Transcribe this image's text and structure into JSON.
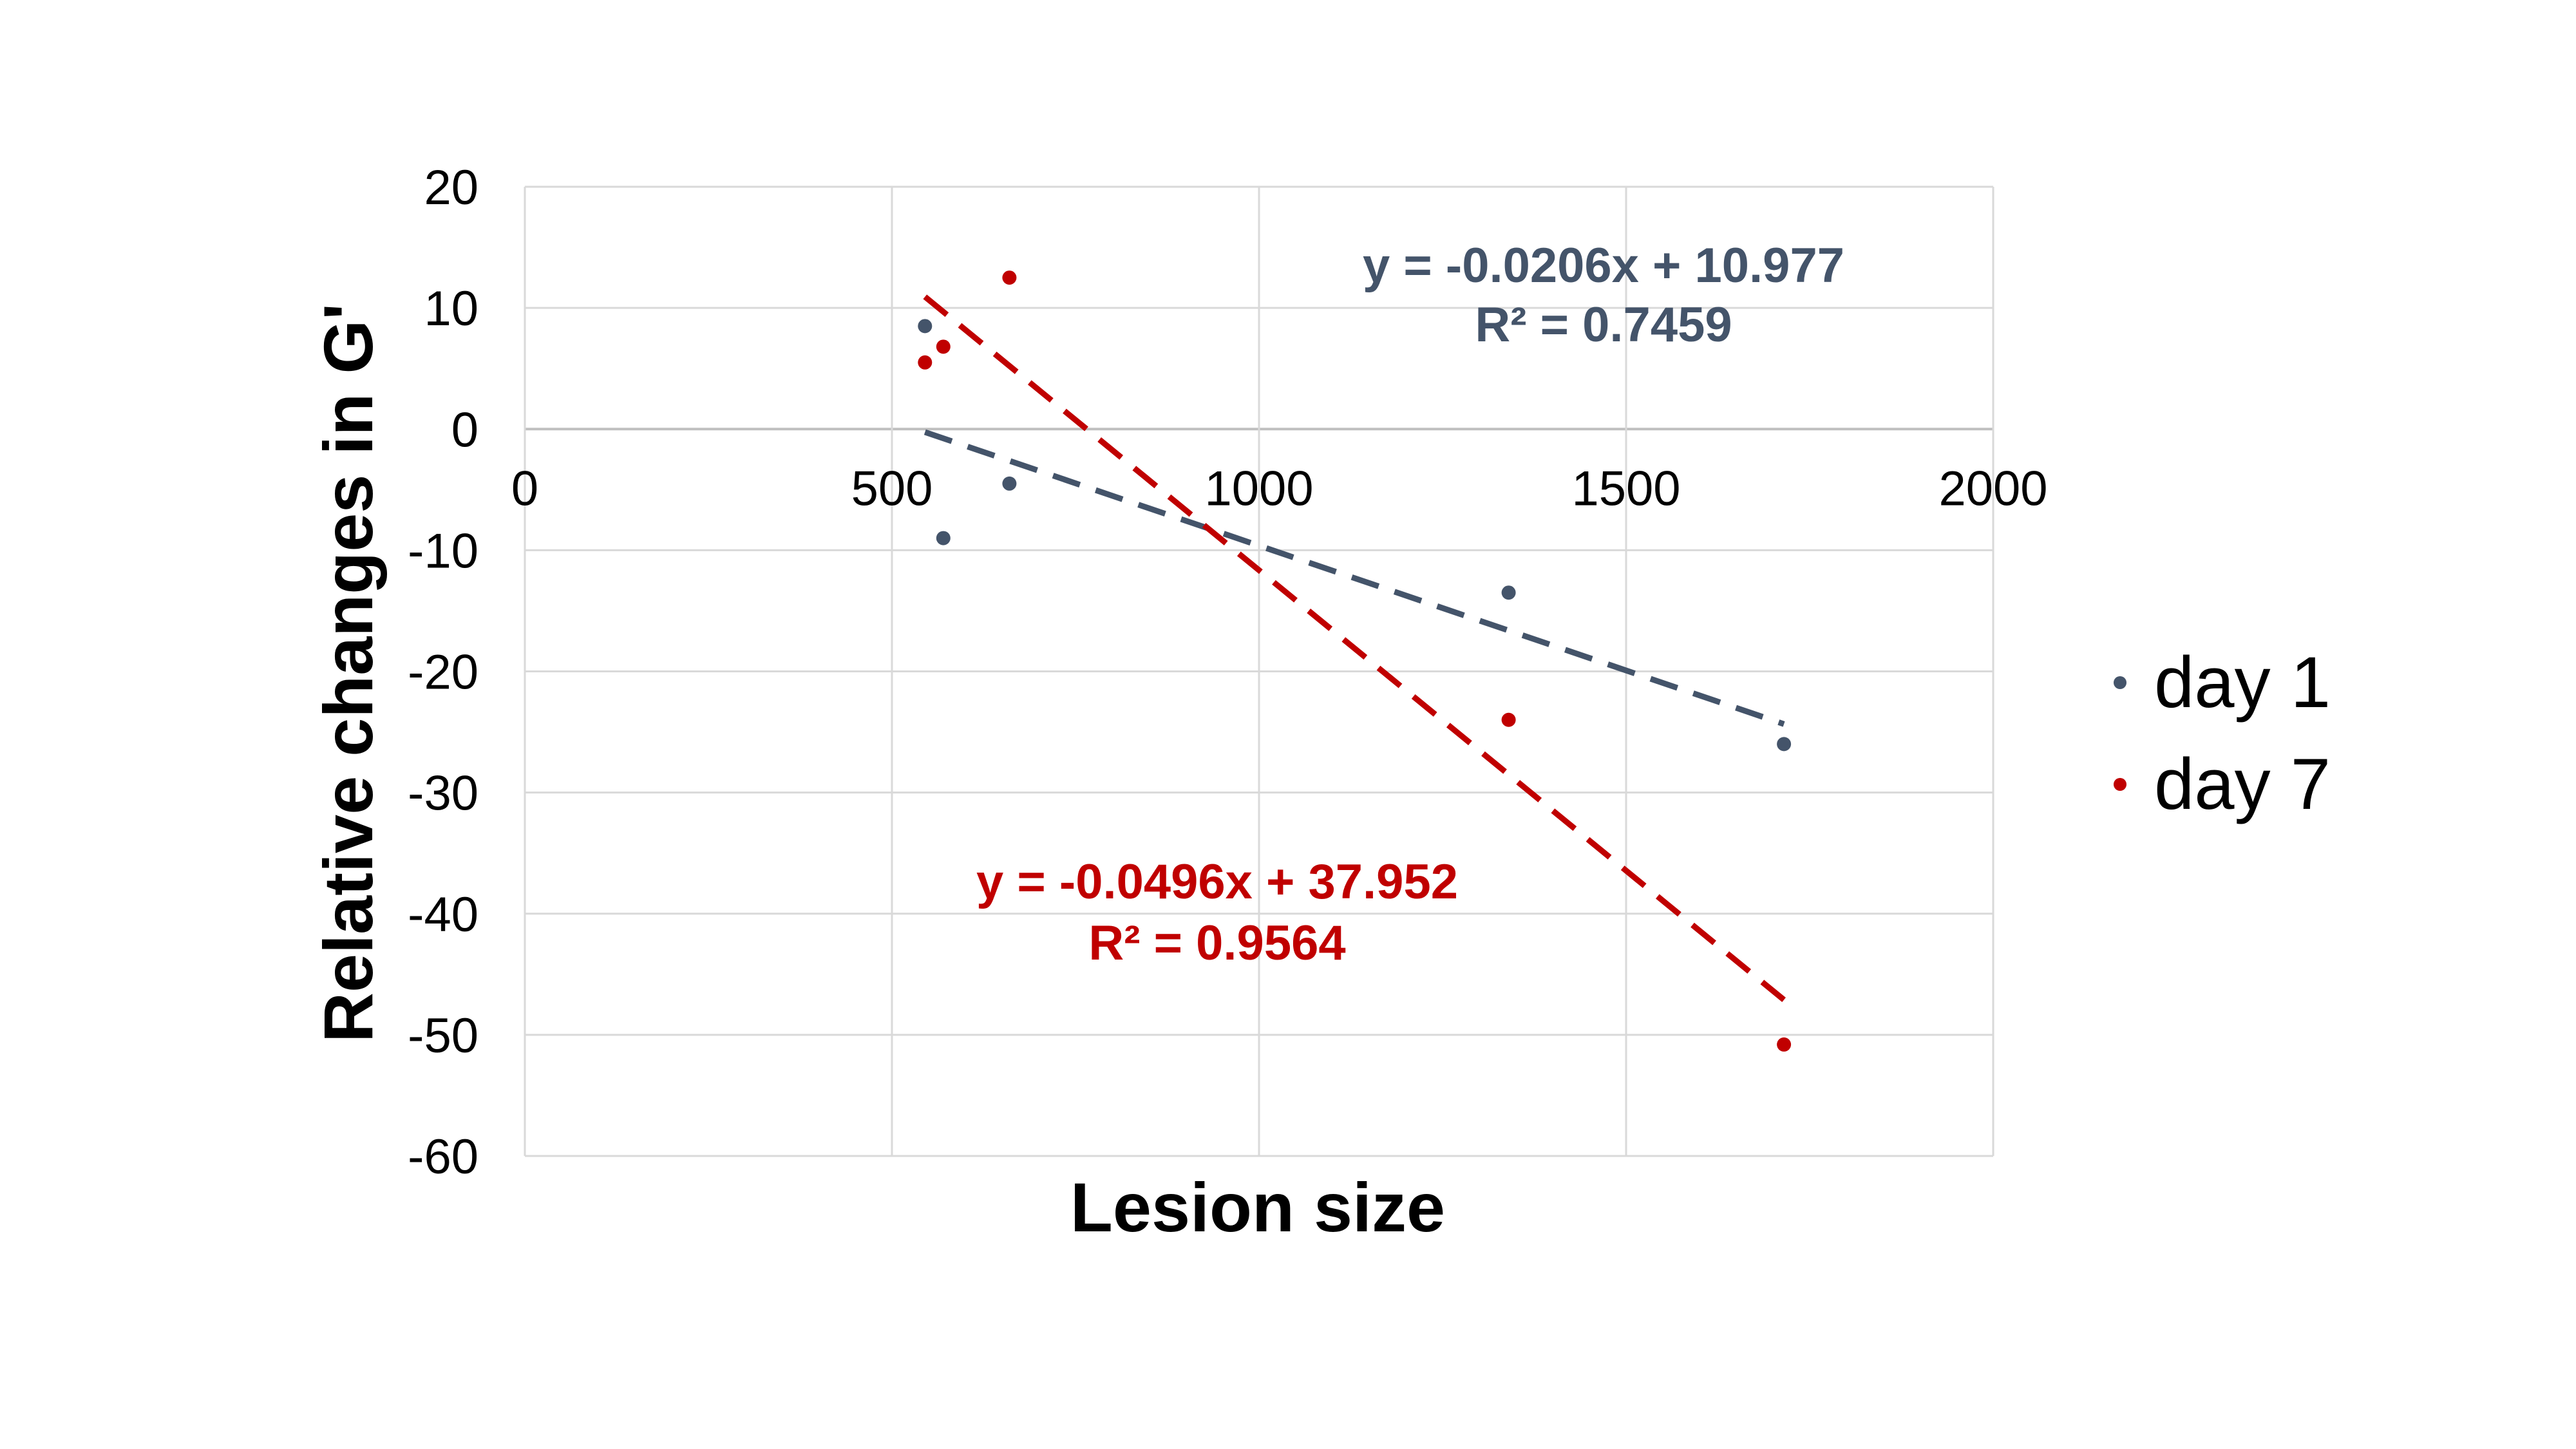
{
  "chart_data": {
    "type": "scatter",
    "xlabel": "Lesion size",
    "ylabel": "Relative changes in G'",
    "xlim": [
      0,
      2000
    ],
    "ylim": [
      -60,
      20
    ],
    "x_ticks": [
      0,
      500,
      1000,
      1500,
      2000
    ],
    "y_ticks": [
      20,
      10,
      0,
      -10,
      -20,
      -30,
      -40,
      -50,
      -60
    ],
    "grid": true,
    "legend_position": "right",
    "series": [
      {
        "name": "day 1",
        "color": "#44546a",
        "x": [
          545,
          570,
          660,
          1340,
          1715
        ],
        "y": [
          8.5,
          -9,
          -4.5,
          -13.5,
          -26
        ],
        "trendline": {
          "slope": -0.0206,
          "intercept": 10.977,
          "x_range": [
            545,
            1715
          ]
        },
        "equation_label": "y = -0.0206x + 10.977",
        "r2_label": "R² = 0.7459"
      },
      {
        "name": "day 7",
        "color": "#c00000",
        "x": [
          545,
          570,
          660,
          1340,
          1715
        ],
        "y": [
          5.5,
          6.8,
          12.5,
          -24,
          -50.8
        ],
        "trendline": {
          "slope": -0.0496,
          "intercept": 37.952,
          "x_range": [
            545,
            1715
          ]
        },
        "equation_label": "y = -0.0496x + 37.952",
        "r2_label": "R² = 0.9564"
      }
    ]
  }
}
